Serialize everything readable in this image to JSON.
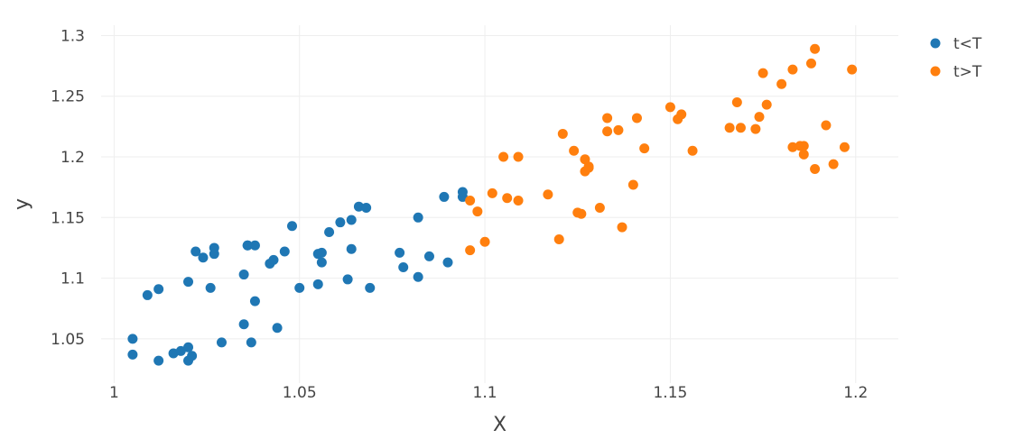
{
  "chart_data": {
    "type": "scatter",
    "title": "",
    "xlabel": "X",
    "ylabel": "y",
    "xlim": [
      0.9965,
      1.2115
    ],
    "ylim": [
      1.0135,
      1.3085
    ],
    "xticks": [
      1,
      1.05,
      1.1,
      1.15,
      1.2
    ],
    "xtick_labels": [
      "1",
      "1.05",
      "1.1",
      "1.15",
      "1.2"
    ],
    "yticks": [
      1.05,
      1.1,
      1.15,
      1.2,
      1.25,
      1.3
    ],
    "ytick_labels": [
      "1.05",
      "1.1",
      "1.15",
      "1.2",
      "1.25",
      "1.3"
    ],
    "grid": true,
    "legend_position": "top-right",
    "series": [
      {
        "name": "t<T",
        "color": "#1f77b4",
        "x": [
          1.005,
          1.005,
          1.009,
          1.012,
          1.012,
          1.016,
          1.018,
          1.02,
          1.02,
          1.02,
          1.021,
          1.022,
          1.024,
          1.026,
          1.027,
          1.027,
          1.029,
          1.035,
          1.035,
          1.036,
          1.036,
          1.037,
          1.038,
          1.038,
          1.042,
          1.043,
          1.044,
          1.046,
          1.048,
          1.05,
          1.055,
          1.055,
          1.056,
          1.056,
          1.058,
          1.061,
          1.063,
          1.064,
          1.064,
          1.066,
          1.068,
          1.069,
          1.077,
          1.078,
          1.082,
          1.082,
          1.085,
          1.089,
          1.09,
          1.094,
          1.094
        ],
        "y": [
          1.05,
          1.037,
          1.086,
          1.091,
          1.032,
          1.038,
          1.04,
          1.043,
          1.032,
          1.097,
          1.036,
          1.122,
          1.117,
          1.092,
          1.125,
          1.12,
          1.047,
          1.103,
          1.062,
          1.127,
          1.127,
          1.047,
          1.081,
          1.127,
          1.112,
          1.115,
          1.059,
          1.122,
          1.143,
          1.092,
          1.095,
          1.12,
          1.113,
          1.121,
          1.138,
          1.146,
          1.099,
          1.148,
          1.124,
          1.159,
          1.158,
          1.092,
          1.121,
          1.109,
          1.101,
          1.15,
          1.118,
          1.167,
          1.113,
          1.167,
          1.171
        ]
      },
      {
        "name": "t>T",
        "color": "#ff7f0e",
        "x": [
          1.096,
          1.096,
          1.098,
          1.1,
          1.102,
          1.105,
          1.106,
          1.109,
          1.109,
          1.117,
          1.12,
          1.121,
          1.124,
          1.125,
          1.126,
          1.127,
          1.127,
          1.128,
          1.128,
          1.131,
          1.133,
          1.133,
          1.136,
          1.137,
          1.14,
          1.141,
          1.143,
          1.15,
          1.152,
          1.153,
          1.156,
          1.166,
          1.168,
          1.169,
          1.173,
          1.174,
          1.175,
          1.176,
          1.18,
          1.183,
          1.183,
          1.185,
          1.186,
          1.186,
          1.188,
          1.189,
          1.189,
          1.192,
          1.194,
          1.197,
          1.199
        ],
        "y": [
          1.164,
          1.123,
          1.155,
          1.13,
          1.17,
          1.2,
          1.166,
          1.2,
          1.164,
          1.169,
          1.132,
          1.219,
          1.205,
          1.154,
          1.153,
          1.188,
          1.198,
          1.191,
          1.192,
          1.158,
          1.232,
          1.221,
          1.222,
          1.142,
          1.177,
          1.232,
          1.207,
          1.241,
          1.231,
          1.235,
          1.205,
          1.224,
          1.245,
          1.224,
          1.223,
          1.233,
          1.269,
          1.243,
          1.26,
          1.272,
          1.208,
          1.209,
          1.202,
          1.209,
          1.277,
          1.19,
          1.289,
          1.226,
          1.194,
          1.208,
          1.272
        ]
      }
    ]
  }
}
